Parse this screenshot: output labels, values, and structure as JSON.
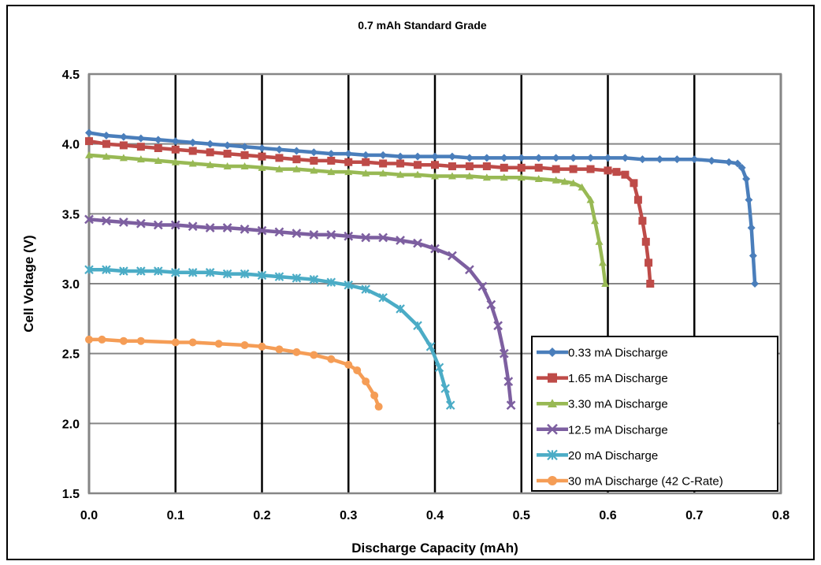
{
  "chart_data": {
    "type": "line",
    "title": "0.7 mAh Standard Grade",
    "xlabel": "Discharge Capacity (mAh)",
    "ylabel": "Cell Voltage (V)",
    "xlim": [
      0.0,
      0.8
    ],
    "ylim": [
      1.5,
      4.5
    ],
    "xticks": [
      "0.0",
      "0.1",
      "0.2",
      "0.3",
      "0.4",
      "0.5",
      "0.6",
      "0.7",
      "0.8"
    ],
    "yticks": [
      "1.5",
      "2.0",
      "2.5",
      "3.0",
      "3.5",
      "4.0",
      "4.5"
    ],
    "grid": true,
    "legend_position": "bottom-right",
    "series": [
      {
        "name": "0.33 mA Discharge",
        "color": "#4a7ebb",
        "marker": "diamond",
        "points": [
          [
            0.0,
            4.08
          ],
          [
            0.02,
            4.06
          ],
          [
            0.04,
            4.05
          ],
          [
            0.06,
            4.04
          ],
          [
            0.08,
            4.03
          ],
          [
            0.1,
            4.02
          ],
          [
            0.12,
            4.01
          ],
          [
            0.14,
            4.0
          ],
          [
            0.16,
            3.99
          ],
          [
            0.18,
            3.98
          ],
          [
            0.2,
            3.97
          ],
          [
            0.22,
            3.96
          ],
          [
            0.24,
            3.95
          ],
          [
            0.26,
            3.94
          ],
          [
            0.28,
            3.93
          ],
          [
            0.3,
            3.93
          ],
          [
            0.32,
            3.92
          ],
          [
            0.34,
            3.92
          ],
          [
            0.36,
            3.91
          ],
          [
            0.38,
            3.91
          ],
          [
            0.4,
            3.91
          ],
          [
            0.42,
            3.91
          ],
          [
            0.44,
            3.9
          ],
          [
            0.46,
            3.9
          ],
          [
            0.48,
            3.9
          ],
          [
            0.5,
            3.9
          ],
          [
            0.52,
            3.9
          ],
          [
            0.54,
            3.9
          ],
          [
            0.56,
            3.9
          ],
          [
            0.58,
            3.9
          ],
          [
            0.6,
            3.9
          ],
          [
            0.62,
            3.9
          ],
          [
            0.64,
            3.89
          ],
          [
            0.66,
            3.89
          ],
          [
            0.68,
            3.89
          ],
          [
            0.7,
            3.89
          ],
          [
            0.72,
            3.88
          ],
          [
            0.74,
            3.87
          ],
          [
            0.75,
            3.86
          ],
          [
            0.755,
            3.83
          ],
          [
            0.76,
            3.75
          ],
          [
            0.763,
            3.6
          ],
          [
            0.766,
            3.4
          ],
          [
            0.768,
            3.2
          ],
          [
            0.77,
            3.0
          ]
        ]
      },
      {
        "name": "1.65 mA Discharge",
        "color": "#be4b48",
        "marker": "square",
        "points": [
          [
            0.0,
            4.02
          ],
          [
            0.02,
            4.0
          ],
          [
            0.04,
            3.99
          ],
          [
            0.06,
            3.98
          ],
          [
            0.08,
            3.97
          ],
          [
            0.1,
            3.96
          ],
          [
            0.12,
            3.95
          ],
          [
            0.14,
            3.94
          ],
          [
            0.16,
            3.93
          ],
          [
            0.18,
            3.92
          ],
          [
            0.2,
            3.91
          ],
          [
            0.22,
            3.9
          ],
          [
            0.24,
            3.89
          ],
          [
            0.26,
            3.88
          ],
          [
            0.28,
            3.88
          ],
          [
            0.3,
            3.87
          ],
          [
            0.32,
            3.87
          ],
          [
            0.34,
            3.86
          ],
          [
            0.36,
            3.86
          ],
          [
            0.38,
            3.85
          ],
          [
            0.4,
            3.85
          ],
          [
            0.42,
            3.84
          ],
          [
            0.44,
            3.84
          ],
          [
            0.46,
            3.84
          ],
          [
            0.48,
            3.83
          ],
          [
            0.5,
            3.83
          ],
          [
            0.52,
            3.83
          ],
          [
            0.54,
            3.82
          ],
          [
            0.56,
            3.82
          ],
          [
            0.58,
            3.82
          ],
          [
            0.6,
            3.81
          ],
          [
            0.61,
            3.8
          ],
          [
            0.62,
            3.78
          ],
          [
            0.63,
            3.72
          ],
          [
            0.635,
            3.6
          ],
          [
            0.64,
            3.45
          ],
          [
            0.644,
            3.3
          ],
          [
            0.647,
            3.15
          ],
          [
            0.649,
            3.0
          ]
        ]
      },
      {
        "name": "3.30 mA Discharge",
        "color": "#98b954",
        "marker": "triangle",
        "points": [
          [
            0.0,
            3.92
          ],
          [
            0.02,
            3.91
          ],
          [
            0.04,
            3.9
          ],
          [
            0.06,
            3.89
          ],
          [
            0.08,
            3.88
          ],
          [
            0.1,
            3.87
          ],
          [
            0.12,
            3.86
          ],
          [
            0.14,
            3.85
          ],
          [
            0.16,
            3.84
          ],
          [
            0.18,
            3.84
          ],
          [
            0.2,
            3.83
          ],
          [
            0.22,
            3.82
          ],
          [
            0.24,
            3.82
          ],
          [
            0.26,
            3.81
          ],
          [
            0.28,
            3.8
          ],
          [
            0.3,
            3.8
          ],
          [
            0.32,
            3.79
          ],
          [
            0.34,
            3.79
          ],
          [
            0.36,
            3.78
          ],
          [
            0.38,
            3.78
          ],
          [
            0.4,
            3.77
          ],
          [
            0.42,
            3.77
          ],
          [
            0.44,
            3.77
          ],
          [
            0.46,
            3.76
          ],
          [
            0.48,
            3.76
          ],
          [
            0.5,
            3.76
          ],
          [
            0.52,
            3.75
          ],
          [
            0.54,
            3.74
          ],
          [
            0.55,
            3.73
          ],
          [
            0.56,
            3.72
          ],
          [
            0.57,
            3.69
          ],
          [
            0.58,
            3.6
          ],
          [
            0.585,
            3.45
          ],
          [
            0.59,
            3.3
          ],
          [
            0.594,
            3.15
          ],
          [
            0.597,
            3.0
          ]
        ]
      },
      {
        "name": "12.5 mA Discharge",
        "color": "#7d5fa0",
        "marker": "x",
        "points": [
          [
            0.0,
            3.46
          ],
          [
            0.02,
            3.45
          ],
          [
            0.04,
            3.44
          ],
          [
            0.06,
            3.43
          ],
          [
            0.08,
            3.42
          ],
          [
            0.1,
            3.42
          ],
          [
            0.12,
            3.41
          ],
          [
            0.14,
            3.4
          ],
          [
            0.16,
            3.4
          ],
          [
            0.18,
            3.39
          ],
          [
            0.2,
            3.38
          ],
          [
            0.22,
            3.37
          ],
          [
            0.24,
            3.36
          ],
          [
            0.26,
            3.35
          ],
          [
            0.28,
            3.35
          ],
          [
            0.3,
            3.34
          ],
          [
            0.32,
            3.33
          ],
          [
            0.34,
            3.33
          ],
          [
            0.36,
            3.31
          ],
          [
            0.38,
            3.29
          ],
          [
            0.4,
            3.25
          ],
          [
            0.42,
            3.2
          ],
          [
            0.44,
            3.1
          ],
          [
            0.455,
            2.98
          ],
          [
            0.465,
            2.85
          ],
          [
            0.473,
            2.7
          ],
          [
            0.48,
            2.5
          ],
          [
            0.485,
            2.3
          ],
          [
            0.488,
            2.13
          ]
        ]
      },
      {
        "name": "20 mA Discharge",
        "color": "#4bacc6",
        "marker": "star",
        "points": [
          [
            0.0,
            3.1
          ],
          [
            0.02,
            3.1
          ],
          [
            0.04,
            3.09
          ],
          [
            0.06,
            3.09
          ],
          [
            0.08,
            3.09
          ],
          [
            0.1,
            3.08
          ],
          [
            0.12,
            3.08
          ],
          [
            0.14,
            3.08
          ],
          [
            0.16,
            3.07
          ],
          [
            0.18,
            3.07
          ],
          [
            0.2,
            3.06
          ],
          [
            0.22,
            3.05
          ],
          [
            0.24,
            3.04
          ],
          [
            0.26,
            3.03
          ],
          [
            0.28,
            3.01
          ],
          [
            0.3,
            2.99
          ],
          [
            0.32,
            2.96
          ],
          [
            0.34,
            2.9
          ],
          [
            0.36,
            2.82
          ],
          [
            0.38,
            2.7
          ],
          [
            0.395,
            2.55
          ],
          [
            0.405,
            2.4
          ],
          [
            0.412,
            2.25
          ],
          [
            0.418,
            2.13
          ]
        ]
      },
      {
        "name": "30 mA Discharge (42 C-Rate)",
        "color": "#f59d56",
        "marker": "circle",
        "points": [
          [
            0.0,
            2.6
          ],
          [
            0.015,
            2.6
          ],
          [
            0.04,
            2.59
          ],
          [
            0.06,
            2.59
          ],
          [
            0.1,
            2.58
          ],
          [
            0.12,
            2.58
          ],
          [
            0.15,
            2.57
          ],
          [
            0.18,
            2.56
          ],
          [
            0.2,
            2.55
          ],
          [
            0.22,
            2.53
          ],
          [
            0.24,
            2.51
          ],
          [
            0.26,
            2.49
          ],
          [
            0.28,
            2.46
          ],
          [
            0.3,
            2.42
          ],
          [
            0.31,
            2.38
          ],
          [
            0.32,
            2.3
          ],
          [
            0.33,
            2.2
          ],
          [
            0.335,
            2.12
          ]
        ]
      }
    ]
  }
}
